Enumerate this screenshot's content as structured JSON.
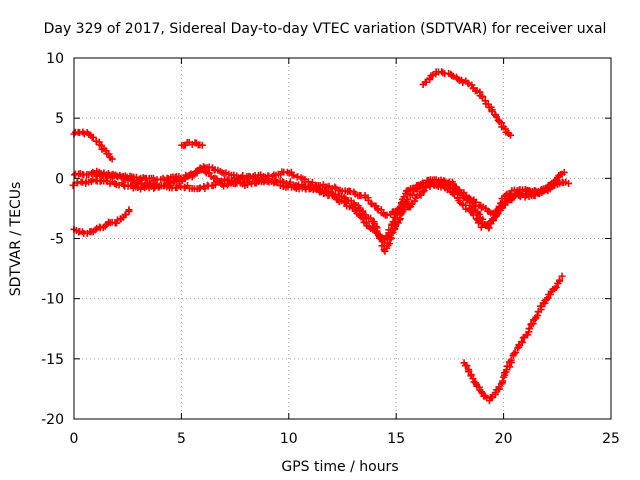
{
  "chart_data": {
    "type": "scatter",
    "title": "Day 329 of 2017, Sidereal Day-to-day VTEC variation (SDTVAR) for receiver uxal",
    "xlabel": "GPS time / hours",
    "ylabel": "SDTVAR / TECUs",
    "xlim": [
      0,
      25
    ],
    "ylim": [
      -20,
      10
    ],
    "x_ticks": [
      0,
      5,
      10,
      15,
      20,
      25
    ],
    "y_ticks": [
      -20,
      -15,
      -10,
      -5,
      0,
      5,
      10
    ],
    "x_tick_labels": [
      "0",
      "5",
      "10",
      "15",
      "20",
      "25"
    ],
    "y_tick_labels": [
      "-20",
      "-15",
      "-10",
      "-5",
      "0",
      "5",
      "10"
    ],
    "grid": true,
    "marker": "+",
    "color": "#ff0000",
    "series": [
      {
        "name": "arc-top-left",
        "x": [
          0.0,
          0.3,
          0.6,
          1.0,
          1.4,
          1.8
        ],
        "y": [
          3.7,
          3.9,
          3.7,
          3.2,
          2.4,
          1.7
        ]
      },
      {
        "name": "arc-low-left",
        "x": [
          0.0,
          0.5,
          1.0,
          1.5,
          2.0,
          2.6
        ],
        "y": [
          -4.3,
          -4.6,
          -4.3,
          -3.8,
          -3.6,
          -2.7
        ]
      },
      {
        "name": "blob-6h",
        "x": [
          5.0,
          5.5,
          6.0
        ],
        "y": [
          2.8,
          2.9,
          2.7
        ]
      },
      {
        "name": "main-band-a",
        "x": [
          0.0,
          1.0,
          2.0,
          3.0,
          4.0,
          5.0,
          6.0,
          7.0,
          8.0,
          9.0,
          10.0,
          11.0,
          12.0,
          13.0,
          14.0,
          14.5,
          15.0,
          15.5,
          16.0,
          16.5,
          17.0,
          17.5,
          18.0,
          18.5,
          19.0,
          19.3,
          19.7,
          20.0,
          20.5,
          21.0,
          21.5,
          22.0,
          22.5,
          22.8
        ],
        "y": [
          0.2,
          0.5,
          0.3,
          -0.4,
          -0.6,
          -0.2,
          0.8,
          -0.6,
          0.1,
          -0.3,
          -0.4,
          -0.8,
          -1.2,
          -2.0,
          -3.8,
          -6.0,
          -4.0,
          -1.8,
          -0.5,
          -0.2,
          -0.2,
          -0.4,
          -1.3,
          -2.0,
          -3.5,
          -4.2,
          -2.8,
          -1.6,
          -1.0,
          -0.8,
          -1.3,
          -0.8,
          0.0,
          0.6
        ]
      },
      {
        "name": "main-band-b",
        "x": [
          0.0,
          1.0,
          2.0,
          3.0,
          4.0,
          5.0,
          6.0,
          7.0,
          8.0,
          9.0,
          10.0,
          11.0,
          12.0,
          13.0,
          14.0,
          14.5,
          15.0,
          15.5,
          16.0,
          16.5,
          17.0,
          17.5,
          18.0,
          18.5,
          19.0,
          19.5,
          20.0,
          20.5,
          21.0,
          21.5,
          22.0,
          22.5,
          23.0
        ],
        "y": [
          -0.5,
          -0.2,
          -0.4,
          -0.8,
          -0.7,
          -0.7,
          -0.8,
          -0.2,
          -0.5,
          -0.1,
          -0.8,
          -0.8,
          -1.5,
          -2.5,
          -4.5,
          -5.2,
          -3.0,
          -1.0,
          -0.8,
          -0.3,
          -0.6,
          -0.9,
          -2.0,
          -2.8,
          -4.0,
          -3.6,
          -2.2,
          -1.4,
          -1.2,
          -1.1,
          -1.0,
          -0.5,
          -0.3
        ]
      },
      {
        "name": "main-band-c",
        "x": [
          1.0,
          2.5,
          4.0,
          5.5,
          6.0,
          7.5,
          9.0,
          10.0,
          11.0,
          12.5,
          13.5,
          14.5,
          15.5,
          16.5,
          17.5,
          18.5,
          19.5,
          20.5,
          21.5,
          22.5
        ],
        "y": [
          0.3,
          0.1,
          -0.1,
          0.2,
          1.0,
          0.1,
          0.2,
          0.5,
          -0.4,
          -1.0,
          -1.5,
          -3.0,
          -2.5,
          -0.6,
          -0.3,
          -1.8,
          -3.0,
          -1.5,
          -1.4,
          -0.2
        ]
      },
      {
        "name": "arc-top-right",
        "x": [
          16.3,
          16.8,
          17.2,
          17.8,
          18.4,
          19.0,
          19.5,
          20.0,
          20.3
        ],
        "y": [
          7.8,
          8.7,
          8.8,
          8.4,
          7.8,
          6.8,
          5.5,
          4.2,
          3.5
        ]
      },
      {
        "name": "arc-bottom-right",
        "x": [
          18.2,
          18.6,
          19.0,
          19.3,
          19.6,
          20.0,
          20.5,
          21.0,
          21.5,
          22.0,
          22.5,
          22.7
        ],
        "y": [
          -15.3,
          -16.8,
          -17.9,
          -18.4,
          -18.0,
          -16.6,
          -14.5,
          -13.2,
          -11.5,
          -10.0,
          -8.8,
          -8.2
        ]
      }
    ]
  }
}
